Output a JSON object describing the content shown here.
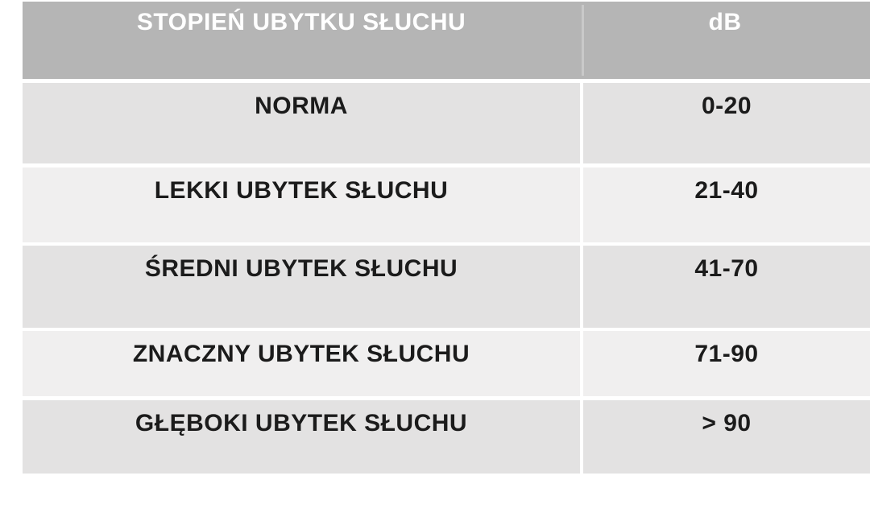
{
  "chart_data": {
    "type": "table",
    "title": "",
    "columns": [
      "STOPIEŃ UBYTKU SŁUCHU",
      "dB"
    ],
    "rows": [
      [
        "NORMA",
        "0-20"
      ],
      [
        "LEKKI UBYTEK SŁUCHU",
        "21-40"
      ],
      [
        "ŚREDNI UBYTEK SŁUCHU",
        "41-70"
      ],
      [
        "ZNACZNY UBYTEK SŁUCHU",
        "71-90"
      ],
      [
        "GŁĘBOKI UBYTEK SŁUCHU",
        "> 90"
      ]
    ]
  },
  "colors": {
    "header_bg": "#b5b5b5",
    "header_text": "#ffffff",
    "row_dark": "#e3e2e2",
    "row_light": "#f0efef",
    "body_text": "#1b1b1b",
    "page_bg": "#ffffff"
  }
}
